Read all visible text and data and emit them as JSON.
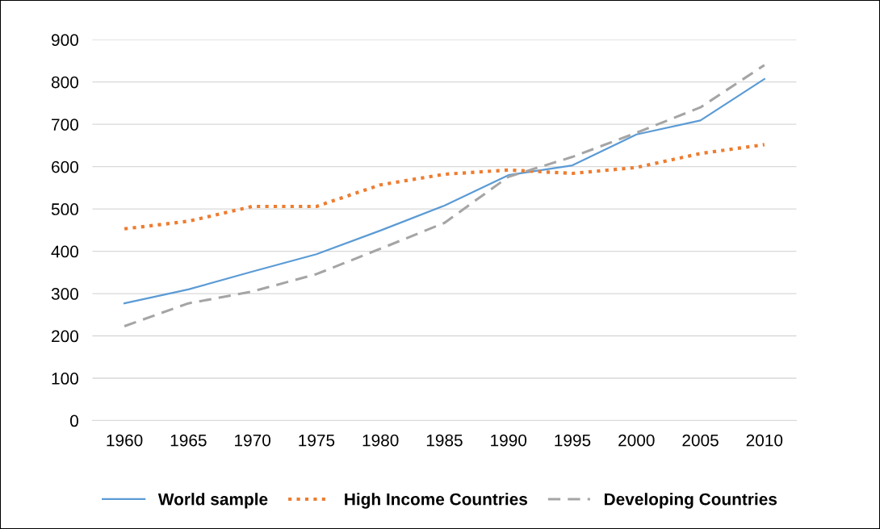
{
  "chart_data": {
    "type": "line",
    "categories": [
      "1960",
      "1965",
      "1970",
      "1975",
      "1980",
      "1985",
      "1990",
      "1995",
      "2000",
      "2005",
      "2010"
    ],
    "series": [
      {
        "name": "World sample",
        "color": "#5b9bd5",
        "line_style": "solid",
        "values": [
          277,
          310,
          352,
          393,
          449,
          508,
          580,
          603,
          676,
          709,
          807
        ]
      },
      {
        "name": "High Income Countries",
        "color": "#ed7d31",
        "line_style": "dotted",
        "values": [
          453,
          471,
          506,
          506,
          557,
          582,
          592,
          584,
          598,
          631,
          652
        ]
      },
      {
        "name": "Developing Countries",
        "color": "#a5a5a5",
        "line_style": "dashed",
        "values": [
          223,
          277,
          305,
          346,
          406,
          467,
          576,
          623,
          680,
          740,
          840
        ]
      }
    ],
    "ylim": [
      0,
      900
    ],
    "yticks": [
      0,
      100,
      200,
      300,
      400,
      500,
      600,
      700,
      800,
      900
    ],
    "grid": "y",
    "legend": "bottom",
    "marker": "none"
  }
}
